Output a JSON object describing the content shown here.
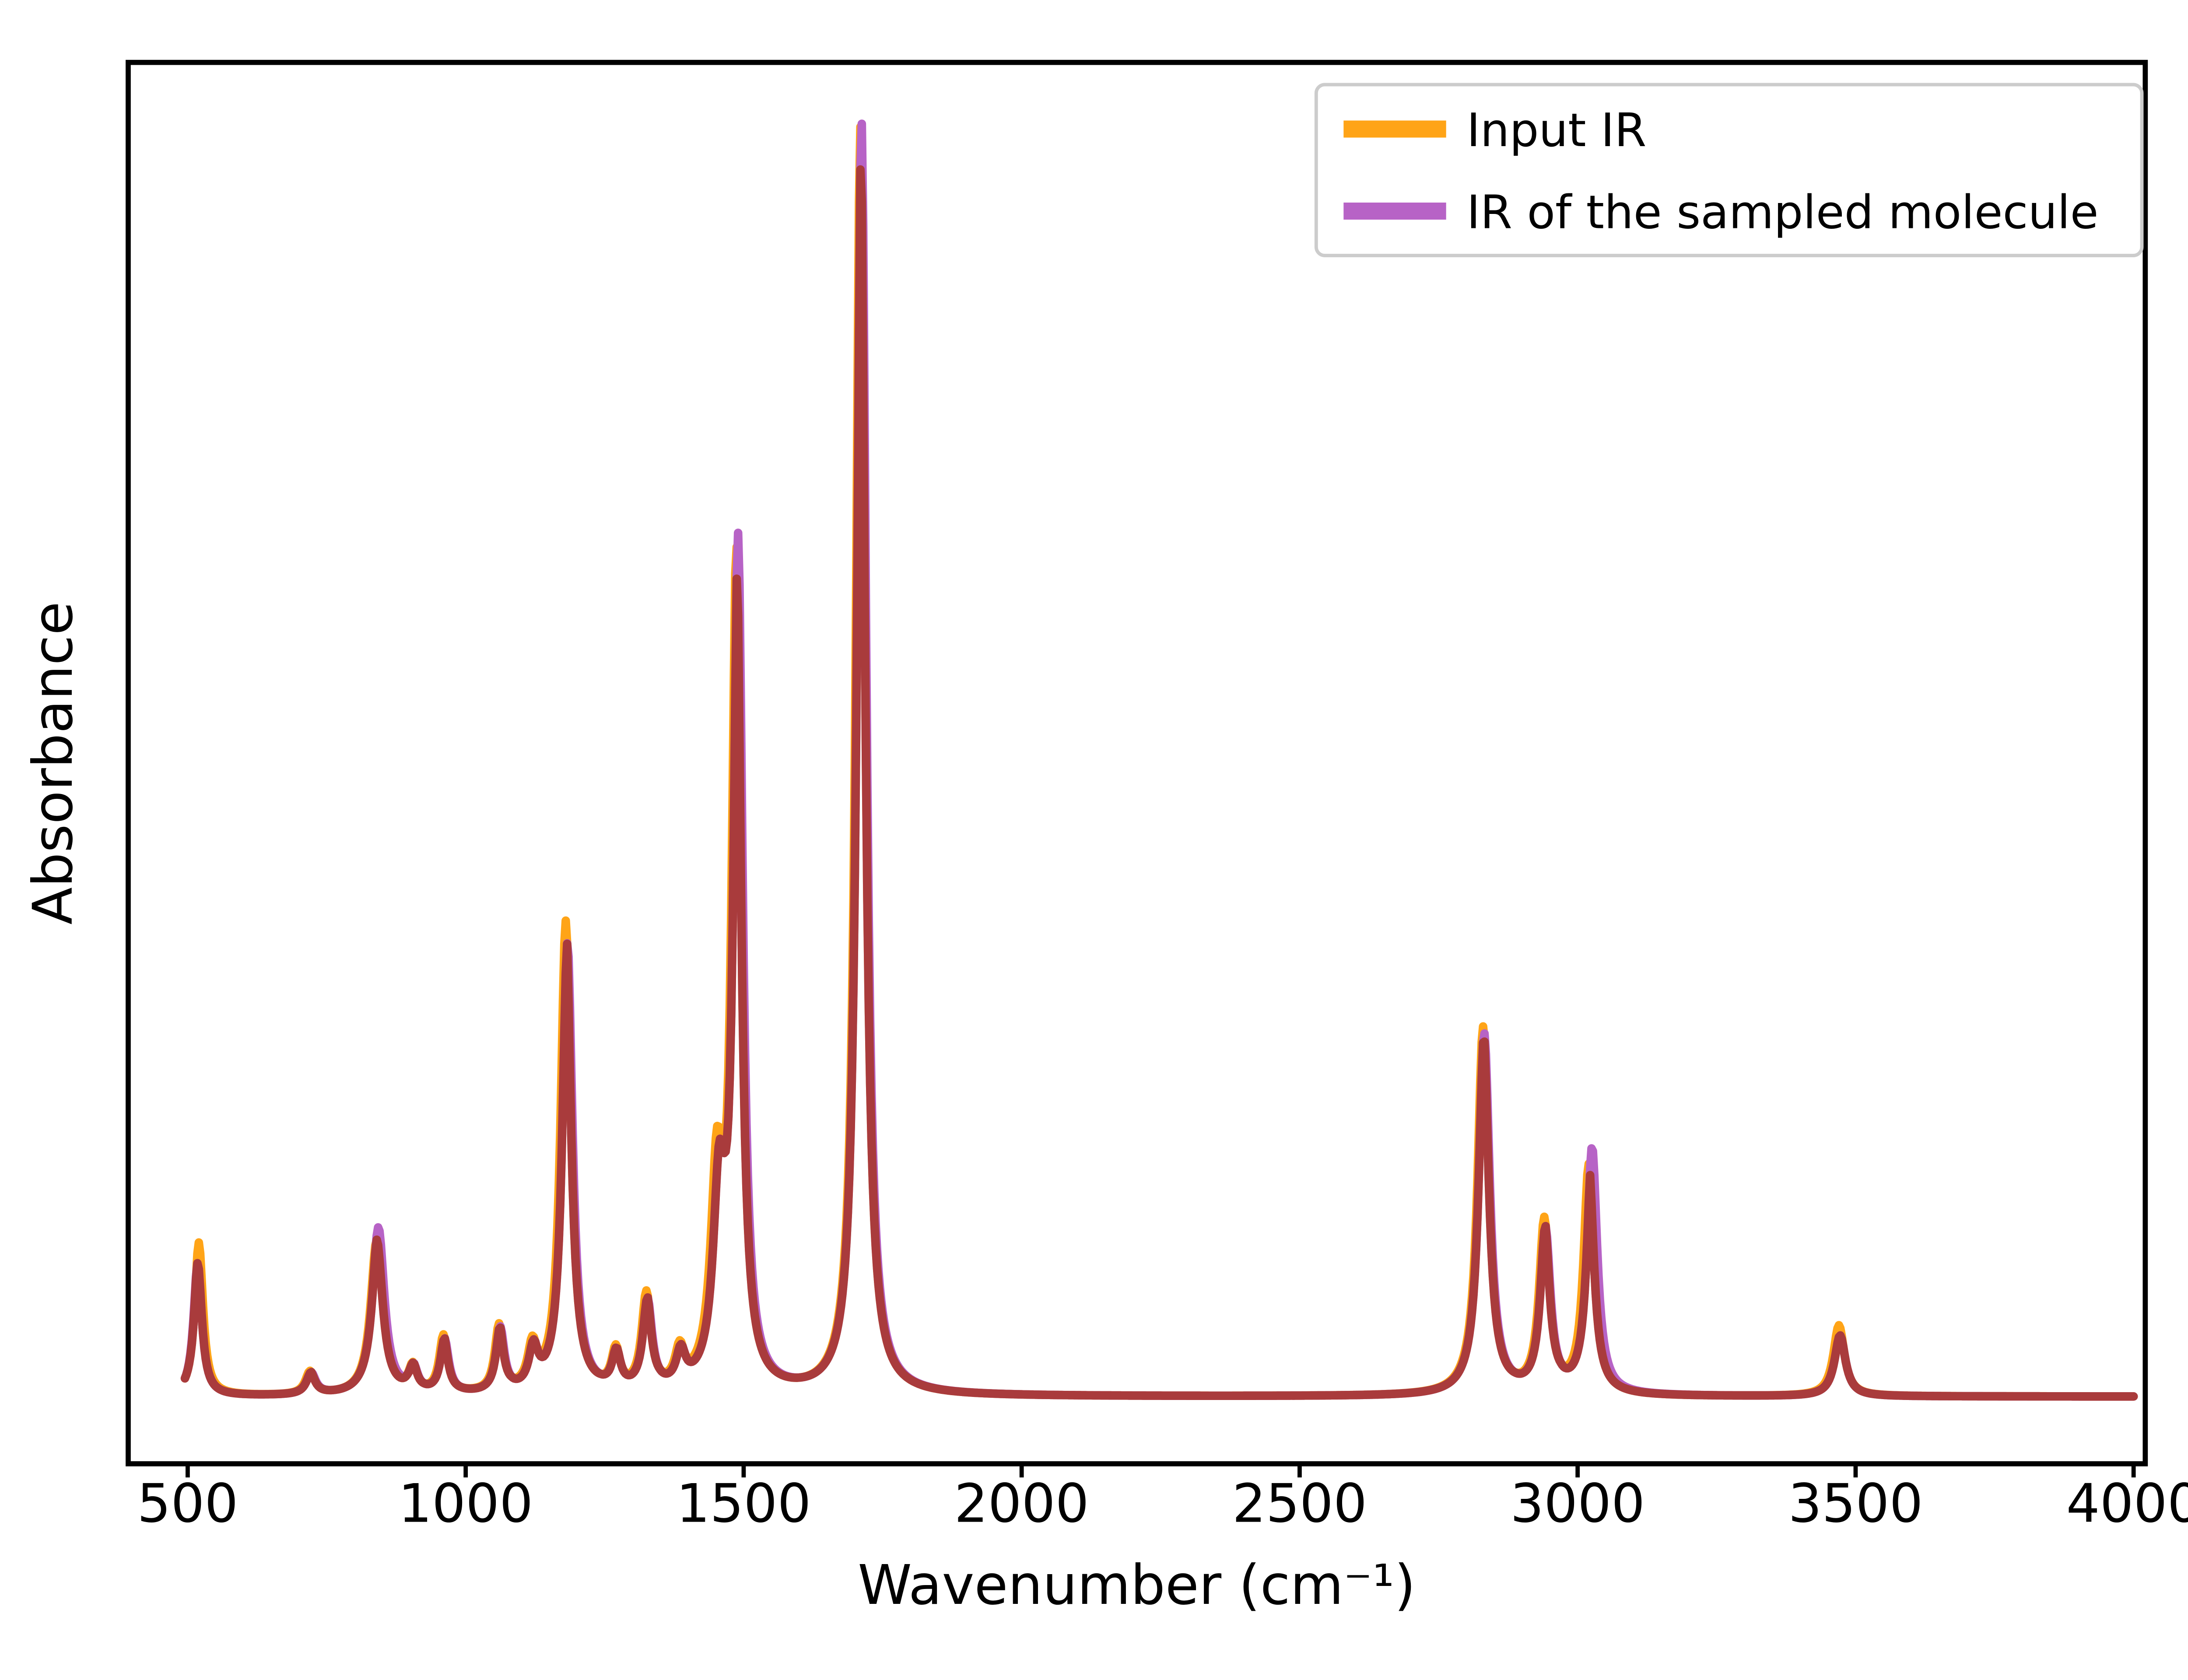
{
  "figure": {
    "background_color": "#ffffff"
  },
  "chart_data": {
    "type": "line",
    "title": "",
    "xlabel": "Wavenumber (cm⁻¹)",
    "ylabel": "Absorbance",
    "xlim": [
      393,
      4021
    ],
    "ylim": [
      -0.053,
      1.053
    ],
    "x_ticks": [
      500,
      1000,
      1500,
      2000,
      2500,
      3000,
      3500,
      4000
    ],
    "y_ticks": [],
    "grid": false,
    "legend": {
      "position": "upper right",
      "border_color": "#cccccc",
      "background": "#ffffff"
    },
    "sample_range": [
      495,
      4000
    ],
    "sample_step": 2.5,
    "peak_format": "[wavenumber_cm-1, absorbance_height, half_width_hwhm]",
    "overlap_color": "#A93B3C",
    "series": [
      {
        "name": "Input IR",
        "color": "#FFA417",
        "line_width": 5,
        "peaks": [
          [
            520,
            0.121,
            9
          ],
          [
            720,
            0.018,
            10
          ],
          [
            840,
            0.122,
            13
          ],
          [
            905,
            0.02,
            9
          ],
          [
            960,
            0.045,
            9
          ],
          [
            1060,
            0.052,
            9
          ],
          [
            1120,
            0.033,
            10
          ],
          [
            1180,
            0.372,
            11
          ],
          [
            1270,
            0.03,
            9
          ],
          [
            1325,
            0.075,
            10
          ],
          [
            1385,
            0.028,
            10
          ],
          [
            1452,
            0.16,
            13
          ],
          [
            1487,
            0.65,
            10
          ],
          [
            1710,
            1.0,
            10
          ],
          [
            2830,
            0.29,
            12
          ],
          [
            2940,
            0.135,
            11
          ],
          [
            3020,
            0.18,
            11
          ],
          [
            3470,
            0.056,
            12
          ]
        ]
      },
      {
        "name": "IR of the sampled molecule",
        "color": "#B763C6",
        "line_width": 5,
        "peaks": [
          [
            518,
            0.105,
            9
          ],
          [
            722,
            0.017,
            10
          ],
          [
            843,
            0.132,
            13
          ],
          [
            906,
            0.019,
            9
          ],
          [
            962,
            0.042,
            9
          ],
          [
            1062,
            0.05,
            9
          ],
          [
            1122,
            0.031,
            10
          ],
          [
            1183,
            0.355,
            11
          ],
          [
            1271,
            0.028,
            9
          ],
          [
            1327,
            0.07,
            10
          ],
          [
            1387,
            0.026,
            10
          ],
          [
            1456,
            0.145,
            13
          ],
          [
            1490,
            0.66,
            10
          ],
          [
            1712,
            1.005,
            10
          ],
          [
            2832,
            0.285,
            12
          ],
          [
            2942,
            0.128,
            11
          ],
          [
            3026,
            0.194,
            11
          ],
          [
            3472,
            0.048,
            12
          ]
        ]
      }
    ]
  }
}
